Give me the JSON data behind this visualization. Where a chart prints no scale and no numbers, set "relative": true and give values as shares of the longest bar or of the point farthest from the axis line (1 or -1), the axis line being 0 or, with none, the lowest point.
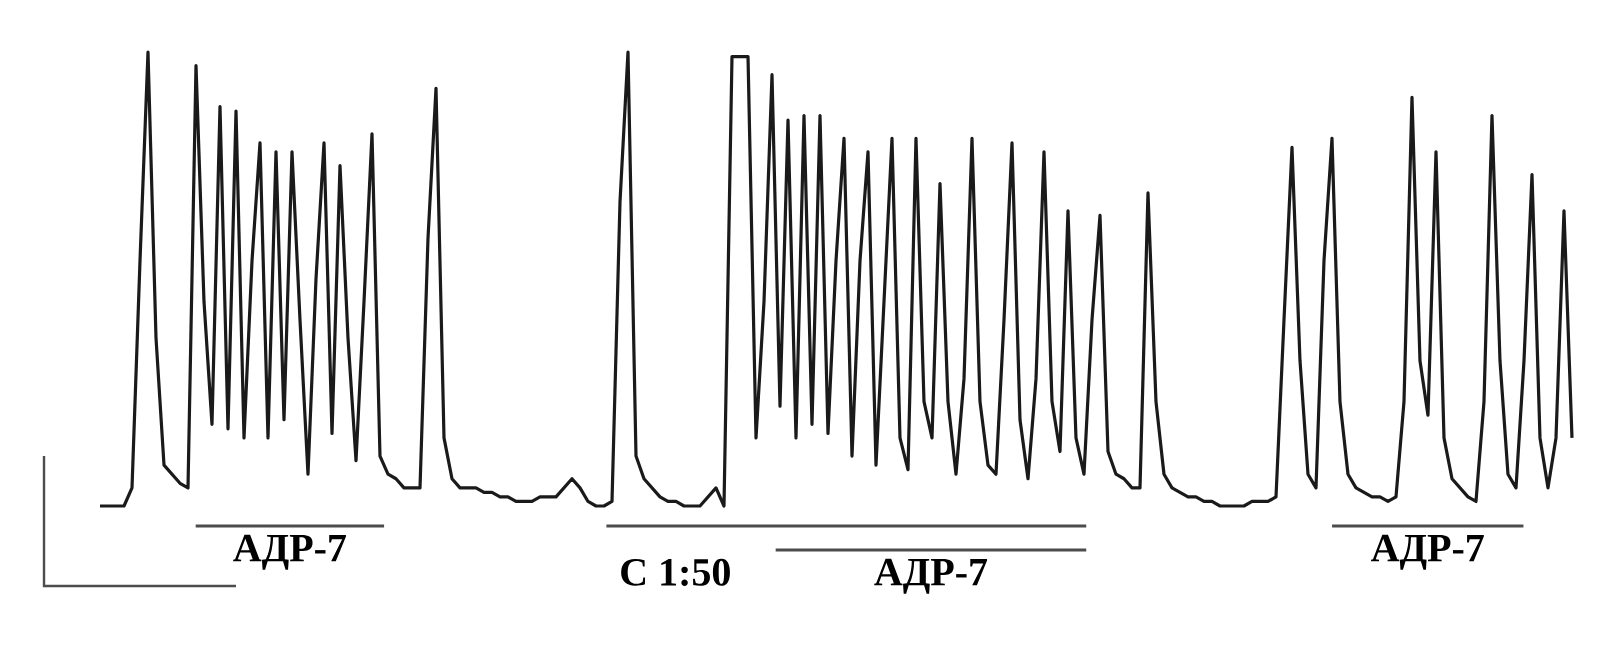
{
  "chart_data": {
    "type": "line",
    "relative": true,
    "categories": [
      null,
      null,
      null,
      null,
      null,
      null,
      null,
      null,
      null,
      null,
      null,
      null,
      null,
      null,
      null,
      null,
      null,
      null,
      null,
      null,
      null,
      null,
      null,
      null,
      null,
      null,
      null,
      null,
      null,
      null,
      null,
      null,
      null,
      null,
      null,
      null,
      null,
      null,
      null,
      null,
      null,
      null,
      null,
      null,
      null,
      null,
      null,
      null,
      null,
      null,
      null,
      null,
      null,
      null,
      null,
      null,
      null,
      null,
      null,
      null,
      null,
      null,
      null,
      null,
      null,
      null,
      null,
      null,
      null,
      null,
      null,
      null,
      null,
      null,
      null,
      null,
      null,
      null,
      null,
      null,
      null,
      null,
      null,
      null,
      null,
      null,
      null,
      null,
      null,
      null,
      null,
      null,
      null,
      null,
      null,
      null,
      null,
      null,
      null,
      null,
      null,
      null,
      null,
      null,
      null,
      null,
      null,
      null,
      null,
      null,
      null,
      null,
      null,
      null,
      null,
      null,
      null,
      null,
      null,
      null,
      null,
      null,
      null,
      null,
      null,
      null,
      null,
      null,
      null,
      null,
      null,
      null,
      null,
      null,
      null,
      null,
      null,
      null,
      null,
      null,
      null,
      null,
      null,
      null,
      null,
      null,
      null,
      null,
      null,
      null,
      null,
      null,
      null,
      null,
      null,
      null,
      null,
      null,
      null,
      null,
      null,
      null,
      null,
      null,
      null,
      null,
      null,
      null,
      null,
      null,
      null,
      null,
      null,
      null,
      null,
      null,
      null,
      null,
      null,
      null,
      null,
      null,
      null,
      null,
      null
    ],
    "series": [
      {
        "color": "#1a1a1a",
        "values": [
          0.0,
          0.0,
          0.0,
          0.0,
          0.04,
          0.54,
          1.0,
          0.37,
          0.09,
          0.07,
          0.05,
          0.04,
          0.97,
          0.45,
          0.18,
          0.88,
          0.17,
          0.87,
          0.15,
          0.54,
          0.8,
          0.15,
          0.78,
          0.19,
          0.78,
          0.41,
          0.07,
          0.5,
          0.8,
          0.16,
          0.75,
          0.37,
          0.1,
          0.45,
          0.82,
          0.11,
          0.07,
          0.06,
          0.04,
          0.04,
          0.04,
          0.59,
          0.92,
          0.15,
          0.06,
          0.04,
          0.04,
          0.04,
          0.03,
          0.03,
          0.02,
          0.02,
          0.01,
          0.01,
          0.01,
          0.02,
          0.02,
          0.02,
          0.04,
          0.06,
          0.04,
          0.01,
          0.0,
          0.0,
          0.01,
          0.67,
          1.0,
          0.11,
          0.06,
          0.04,
          0.02,
          0.01,
          0.01,
          0.0,
          0.0,
          0.0,
          0.02,
          0.04,
          0.0,
          0.99,
          0.99,
          0.99,
          0.15,
          0.45,
          0.95,
          0.22,
          0.85,
          0.15,
          0.86,
          0.18,
          0.86,
          0.16,
          0.54,
          0.81,
          0.11,
          0.54,
          0.78,
          0.09,
          0.45,
          0.81,
          0.15,
          0.08,
          0.81,
          0.23,
          0.15,
          0.71,
          0.23,
          0.07,
          0.28,
          0.81,
          0.23,
          0.09,
          0.07,
          0.41,
          0.8,
          0.19,
          0.06,
          0.28,
          0.78,
          0.23,
          0.12,
          0.65,
          0.15,
          0.07,
          0.41,
          0.64,
          0.12,
          0.07,
          0.06,
          0.04,
          0.04,
          0.69,
          0.23,
          0.07,
          0.04,
          0.03,
          0.02,
          0.02,
          0.01,
          0.01,
          0.0,
          0.0,
          0.0,
          0.0,
          0.01,
          0.01,
          0.01,
          0.02,
          0.41,
          0.79,
          0.32,
          0.07,
          0.04,
          0.54,
          0.81,
          0.23,
          0.07,
          0.04,
          0.03,
          0.02,
          0.02,
          0.01,
          0.02,
          0.23,
          0.9,
          0.32,
          0.2,
          0.78,
          0.15,
          0.06,
          0.04,
          0.02,
          0.01,
          0.23,
          0.86,
          0.32,
          0.07,
          0.04,
          0.32,
          0.73,
          0.15,
          0.04,
          0.15,
          0.65,
          0.15
        ]
      }
    ],
    "annotations": [
      "АДР-7",
      "C 1:50",
      "АДР-7",
      "АДР-7"
    ]
  }
}
